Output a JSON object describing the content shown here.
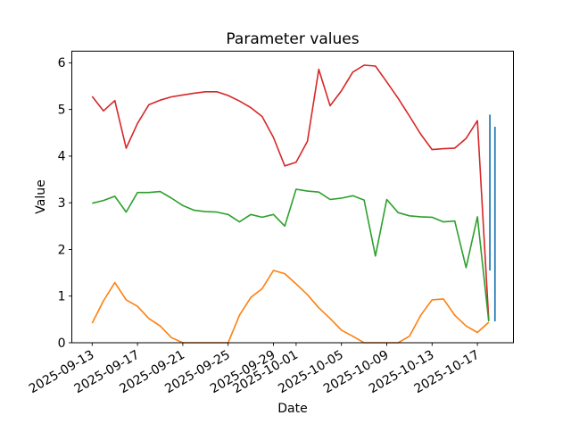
{
  "figure": {
    "background": "#ffffff"
  },
  "chart_data": {
    "type": "line",
    "title": "Parameter values",
    "xlabel": "Date",
    "ylabel": "Value",
    "ylim": [
      0,
      6.25
    ],
    "yticks": [
      0,
      1,
      2,
      3,
      4,
      5,
      6
    ],
    "xtick_labels": [
      "2025-09-13",
      "2025-09-17",
      "2025-09-21",
      "2025-09-25",
      "2025-09-29",
      "2025-10-01",
      "2025-10-05",
      "2025-10-09",
      "2025-10-13",
      "2025-10-17"
    ],
    "xtick_rotation_deg": 30,
    "grid": false,
    "legend": "none",
    "x_base_date": "2025-09-13",
    "x_dates": [
      "2025-09-13",
      "2025-09-14",
      "2025-09-15",
      "2025-09-16",
      "2025-09-17",
      "2025-09-18",
      "2025-09-19",
      "2025-09-20",
      "2025-09-21",
      "2025-09-22",
      "2025-09-23",
      "2025-09-24",
      "2025-09-25",
      "2025-09-26",
      "2025-09-27",
      "2025-09-28",
      "2025-09-29",
      "2025-09-30",
      "2025-10-01",
      "2025-10-02",
      "2025-10-03",
      "2025-10-04",
      "2025-10-05",
      "2025-10-06",
      "2025-10-07",
      "2025-10-08",
      "2025-10-09",
      "2025-10-10",
      "2025-10-11",
      "2025-10-12",
      "2025-10-13",
      "2025-10-14",
      "2025-10-15",
      "2025-10-16",
      "2025-10-17",
      "2025-10-18"
    ],
    "series": [
      {
        "name": "red",
        "color": "#d62728",
        "values": [
          5.28,
          4.97,
          5.19,
          4.17,
          4.7,
          5.1,
          5.2,
          5.27,
          5.31,
          5.35,
          5.38,
          5.38,
          5.3,
          5.18,
          5.04,
          4.85,
          4.4,
          3.79,
          3.87,
          4.32,
          5.86,
          5.08,
          5.4,
          5.8,
          5.95,
          5.93,
          5.59,
          5.24,
          4.86,
          4.47,
          4.14,
          4.16,
          4.17,
          4.38,
          4.76,
          0.49
        ]
      },
      {
        "name": "green",
        "color": "#2ca02c",
        "values": [
          2.99,
          3.05,
          3.14,
          2.8,
          3.22,
          3.22,
          3.24,
          3.1,
          2.94,
          2.84,
          2.81,
          2.8,
          2.75,
          2.59,
          2.75,
          2.69,
          2.75,
          2.5,
          3.29,
          3.25,
          3.23,
          3.07,
          3.1,
          3.15,
          3.06,
          1.86,
          3.07,
          2.79,
          2.72,
          2.7,
          2.69,
          2.59,
          2.61,
          1.61,
          2.7,
          0.46
        ]
      },
      {
        "name": "orange",
        "color": "#ff7f0e",
        "values": [
          0.42,
          0.9,
          1.29,
          0.92,
          0.78,
          0.52,
          0.36,
          0.11,
          0.0,
          0.0,
          0.0,
          0.0,
          0.0,
          0.59,
          0.97,
          1.16,
          1.55,
          1.48,
          1.26,
          1.03,
          0.75,
          0.52,
          0.27,
          0.14,
          0.0,
          0.0,
          0.0,
          0.0,
          0.14,
          0.59,
          0.92,
          0.94,
          0.59,
          0.36,
          0.22,
          0.44
        ]
      }
    ],
    "blue_spikes": {
      "name": "blue",
      "color": "#1f77b4",
      "description": "two near-vertical blue spikes at the right edge, just after the other lines end near 2025-10-18",
      "segments": [
        {
          "day_offset": 35.1,
          "from": 1.55,
          "to": 4.89
        },
        {
          "day_offset": 35.55,
          "from": 4.63,
          "to": 0.46
        }
      ]
    }
  }
}
